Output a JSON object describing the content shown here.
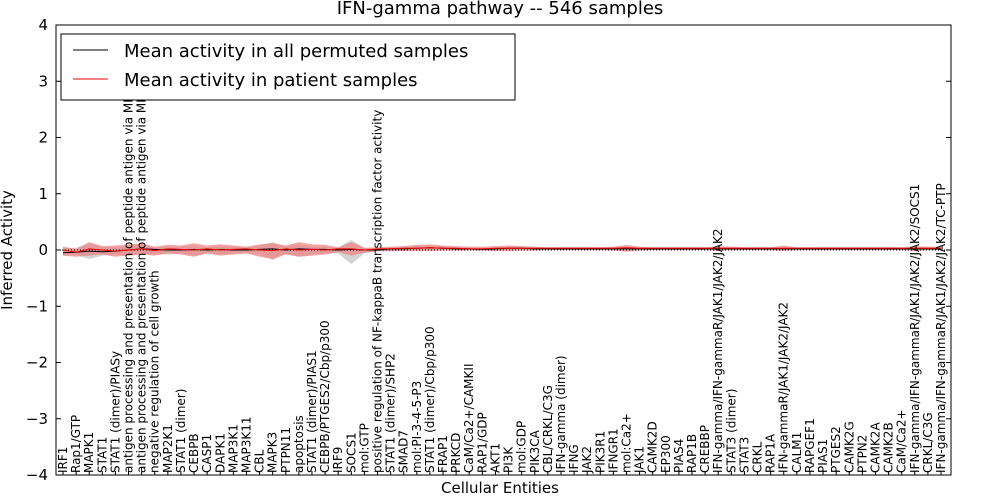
{
  "chart_data": {
    "type": "line",
    "title": "IFN-gamma pathway -- 546 samples",
    "xlabel": "Cellular Entities",
    "ylabel": "Inferred Activity",
    "ylim": [
      -4,
      4
    ],
    "yticks": [
      -4,
      -3,
      -2,
      -1,
      0,
      1,
      2,
      3,
      4
    ],
    "ytick_labels": [
      "−4",
      "−3",
      "−2",
      "−1",
      "0",
      "1",
      "2",
      "3",
      "4"
    ],
    "legend_position": "upper-left",
    "colors": {
      "permuted": "#000000",
      "patient": "#ee0000",
      "band": "#f08080"
    },
    "categories": [
      "IRF1",
      "Rap1/GTP",
      "MAPK1",
      "STAT1",
      "STAT1 (dimer)/PIASy",
      "antigen processing and presentation of peptide antigen via MHC class I",
      "antigen processing and presentation of peptide antigen via MHC class II",
      "negative regulation of cell growth",
      "MAP2K1",
      "STAT1 (dimer)",
      "CEBPB",
      "CASP1",
      "DAPK1",
      "MAP3K1",
      "MAP3K11",
      "CBL",
      "MAPK3",
      "PTPN11",
      "apoptosis",
      "STAT1 (dimer)/PIAS1",
      "CEBPB/PTGES2/Cbp/p300",
      "IRF9",
      "SOCS1",
      "mol:GTP",
      "positive regulation of NF-kappaB transcription factor activity",
      "STAT1 (dimer)/SHP2",
      "SMAD7",
      "mol:PI-3-4-5-P3",
      "STAT1 (dimer)/Cbp/p300",
      "FRAP1",
      "PRKCD",
      "CaM/Ca2+/CAMKII",
      "RAP1/GDP",
      "AKT1",
      "PI3K",
      "mol:GDP",
      "PIK3CA",
      "CBL/CRKL/C3G",
      "IFN-gamma (dimer)",
      "IFNG",
      "JAK2",
      "PIK3R1",
      "IFNGR1",
      "mol:Ca2+",
      "JAK1",
      "CAMK2D",
      "EP300",
      "PIAS4",
      "RAP1B",
      "CREBBP",
      "IFN-gamma/IFN-gammaR/JAK1/JAK2/JAK2",
      "STAT3 (dimer)",
      "STAT3",
      "CRKL",
      "RAP1A",
      "IFN-gammaR/JAK1/JAK2/JAK2",
      "CALM1",
      "RAPGEF1",
      "PIAS1",
      "PTGES2",
      "CAMK2G",
      "PTPN2",
      "CAMK2A",
      "CAMK2B",
      "CaM/Ca2+",
      "IFN-gamma/IFN-gammaR/JAK1/JAK2/JAK2/SOCS1",
      "CRKL/C3G",
      "IFN-gamma/IFN-gammaR/JAK1/JAK2/JAK2/TC-PTP"
    ],
    "series": [
      {
        "name": "Mean activity in all permuted samples",
        "values": [
          -0.05,
          -0.04,
          -0.02,
          -0.03,
          -0.02,
          0.0,
          0.02,
          0.01,
          0.0,
          0.0,
          0.01,
          0.0,
          0.01,
          0.0,
          0.0,
          0.01,
          0.02,
          0.0,
          0.02,
          0.01,
          0.01,
          0.0,
          0.01,
          0.0,
          0.0,
          0.02,
          0.02,
          0.03,
          0.04,
          0.03,
          0.02,
          0.02,
          0.01,
          0.02,
          0.03,
          0.03,
          0.02,
          0.02,
          0.02,
          0.02,
          0.02,
          0.02,
          0.02,
          0.02,
          0.02,
          0.02,
          0.02,
          0.02,
          0.02,
          0.02,
          0.02,
          0.02,
          0.02,
          0.02,
          0.02,
          0.02,
          0.02,
          0.02,
          0.02,
          0.02,
          0.02,
          0.02,
          0.02,
          0.02,
          0.02,
          0.02,
          0.02,
          0.02
        ]
      },
      {
        "name": "Mean activity in patient samples",
        "values": [
          0.0,
          -0.04,
          0.02,
          0.0,
          -0.02,
          0.0,
          0.02,
          -0.01,
          0.02,
          0.01,
          0.0,
          0.02,
          0.0,
          0.01,
          0.02,
          0.0,
          -0.01,
          0.02,
          0.0,
          0.01,
          0.0,
          0.02,
          0.02,
          0.0,
          0.02,
          0.02,
          0.03,
          0.03,
          0.04,
          0.03,
          0.03,
          0.02,
          0.02,
          0.03,
          0.03,
          0.03,
          0.03,
          0.03,
          0.03,
          0.03,
          0.03,
          0.03,
          0.03,
          0.04,
          0.03,
          0.03,
          0.03,
          0.03,
          0.03,
          0.03,
          0.03,
          0.03,
          0.03,
          0.03,
          0.03,
          0.03,
          0.03,
          0.03,
          0.03,
          0.03,
          0.03,
          0.03,
          0.03,
          0.03,
          0.03,
          0.03,
          0.03,
          0.03
        ]
      }
    ],
    "band_permuted": {
      "upper": [
        0.03,
        0.04,
        0.12,
        0.06,
        0.05,
        0.08,
        0.1,
        0.04,
        0.06,
        0.06,
        0.08,
        0.04,
        0.08,
        0.06,
        0.04,
        0.08,
        0.14,
        0.06,
        0.1,
        0.06,
        0.06,
        0.04,
        0.18,
        0.04,
        0.02,
        0.05,
        0.06,
        0.08,
        0.08,
        0.06,
        0.05,
        0.05,
        0.04,
        0.05,
        0.06,
        0.06,
        0.05,
        0.05,
        0.05,
        0.05,
        0.05,
        0.05,
        0.05,
        0.05,
        0.05,
        0.05,
        0.05,
        0.05,
        0.05,
        0.05,
        0.05,
        0.05,
        0.05,
        0.05,
        0.05,
        0.05,
        0.05,
        0.05,
        0.05,
        0.05,
        0.05,
        0.05,
        0.05,
        0.05,
        0.05,
        0.05,
        0.05,
        0.05
      ],
      "lower": [
        -0.1,
        -0.09,
        -0.16,
        -0.1,
        -0.08,
        -0.1,
        -0.08,
        -0.06,
        -0.08,
        -0.06,
        -0.1,
        -0.06,
        -0.08,
        -0.06,
        -0.06,
        -0.08,
        -0.18,
        -0.06,
        -0.12,
        -0.08,
        -0.06,
        -0.06,
        -0.25,
        -0.06,
        -0.02,
        -0.01,
        -0.01,
        0.0,
        0.0,
        0.0,
        0.0,
        0.0,
        0.0,
        0.0,
        0.0,
        0.0,
        0.0,
        0.0,
        0.0,
        0.0,
        0.0,
        0.0,
        0.0,
        0.0,
        0.0,
        0.0,
        0.0,
        0.0,
        0.0,
        0.0,
        0.0,
        0.0,
        0.0,
        0.0,
        0.0,
        0.0,
        0.0,
        0.0,
        0.0,
        0.0,
        0.0,
        0.0,
        0.0,
        0.0,
        0.0,
        0.0,
        0.0,
        0.0
      ]
    },
    "band_patient": {
      "upper": [
        0.06,
        0.02,
        0.14,
        0.07,
        0.08,
        0.1,
        0.12,
        0.06,
        0.09,
        0.08,
        0.12,
        0.08,
        0.1,
        0.08,
        0.06,
        0.1,
        0.12,
        0.08,
        0.14,
        0.1,
        0.09,
        0.05,
        0.14,
        0.04,
        0.05,
        0.06,
        0.07,
        0.09,
        0.1,
        0.08,
        0.07,
        0.06,
        0.06,
        0.07,
        0.08,
        0.07,
        0.06,
        0.05,
        0.05,
        0.05,
        0.05,
        0.05,
        0.06,
        0.09,
        0.06,
        0.05,
        0.05,
        0.05,
        0.05,
        0.05,
        0.07,
        0.06,
        0.05,
        0.05,
        0.05,
        0.08,
        0.05,
        0.05,
        0.05,
        0.05,
        0.05,
        0.05,
        0.05,
        0.05,
        0.05,
        0.07,
        0.06,
        0.06
      ],
      "lower": [
        -0.1,
        -0.12,
        -0.1,
        -0.08,
        -0.12,
        -0.1,
        -0.08,
        -0.1,
        -0.06,
        -0.08,
        -0.12,
        -0.06,
        -0.1,
        -0.08,
        -0.06,
        -0.12,
        -0.16,
        -0.08,
        -0.12,
        -0.1,
        -0.08,
        -0.04,
        -0.1,
        -0.05,
        -0.02,
        -0.02,
        -0.02,
        -0.02,
        -0.02,
        -0.01,
        -0.01,
        -0.01,
        -0.01,
        -0.02,
        -0.02,
        -0.01,
        -0.01,
        0.0,
        0.0,
        0.0,
        0.0,
        0.0,
        -0.01,
        -0.03,
        -0.01,
        0.0,
        0.0,
        0.0,
        0.0,
        0.0,
        -0.02,
        0.0,
        0.0,
        0.0,
        0.0,
        -0.02,
        0.0,
        0.0,
        0.0,
        0.0,
        0.0,
        0.0,
        0.0,
        0.0,
        0.0,
        -0.02,
        0.0,
        0.0
      ]
    }
  }
}
